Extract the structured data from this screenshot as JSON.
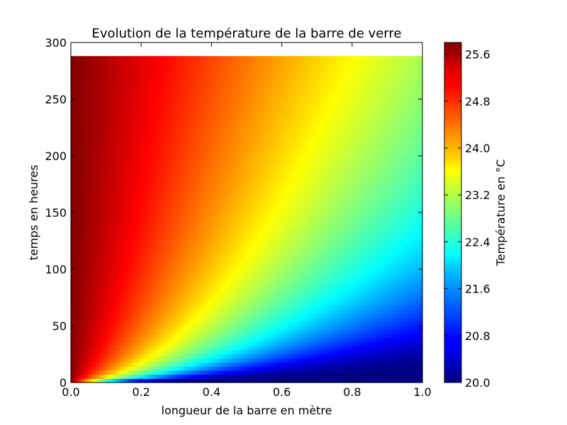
{
  "chart_data": {
    "type": "heatmap",
    "title": "Evolution de la température de la barre de verre",
    "xlabel": "longueur de la barre en mètre",
    "ylabel": "temps en heures",
    "xlim": [
      0.0,
      1.0
    ],
    "ylim": [
      0,
      300
    ],
    "data_extent_y": [
      0,
      288
    ],
    "x_ticks": [
      "0.0",
      "0.2",
      "0.4",
      "0.6",
      "0.8",
      "1.0"
    ],
    "y_ticks": [
      "0",
      "50",
      "100",
      "150",
      "200",
      "250",
      "300"
    ],
    "colormap": "jet",
    "value_range": [
      20.0,
      25.8
    ],
    "grid": false,
    "colorbar": {
      "label": "Température en °C",
      "ticks": [
        "20.0",
        "20.8",
        "21.6",
        "22.4",
        "23.2",
        "24.0",
        "24.8",
        "25.6"
      ],
      "placement": "right"
    },
    "boundary_temperature_left": 25.8,
    "initial_temperature": 20.0
  }
}
